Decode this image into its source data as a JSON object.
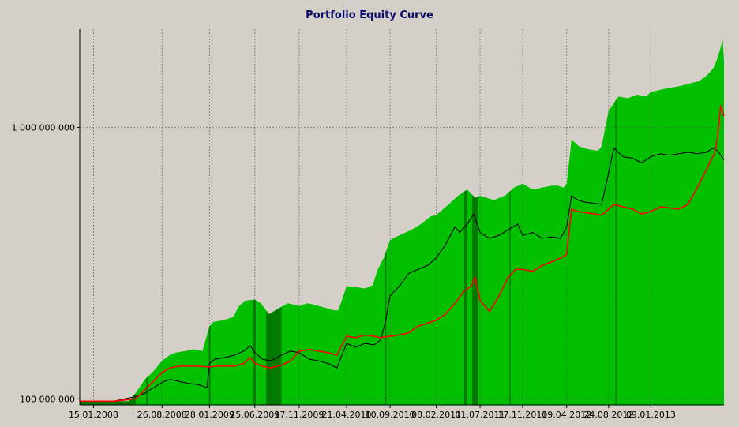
{
  "chart_data": {
    "type": "area",
    "title": "Portfolio Equity Curve",
    "xlabel": "",
    "ylabel": "",
    "y_scale": "log",
    "ylim": [
      95000000,
      2300000000
    ],
    "y_ticks": [
      100000000,
      1000000000
    ],
    "y_tick_labels": [
      "100 000 000",
      "1 000 000 000"
    ],
    "x_range": [
      "2007-12-01",
      "2013-09-05"
    ],
    "x_ticks": [
      "2008-01-15",
      "2008-08-26",
      "2009-01-28",
      "2009-06-25",
      "2009-11-17",
      "2010-04-21",
      "2010-09-10",
      "2011-02-08",
      "2011-07-01",
      "2011-11-17",
      "2012-04-09",
      "2012-08-24",
      "2013-01-09"
    ],
    "x_tick_labels": [
      "15.01.2008",
      "26.08.2008",
      "28.01.2009",
      "25.06.2009",
      "17.11.2009",
      "21.04.2010",
      "10.09.2010",
      "08.02.2011",
      "01.07.2011",
      "17.11.2011",
      "09.04.2012",
      "24.08.2012",
      "09.01.2013"
    ],
    "grid": true,
    "colors": {
      "area_light": "#00c000",
      "area_dark": "#007a00",
      "black_line": "#000000",
      "red_line": "#ff0000",
      "background": "#d4d0c8"
    },
    "series": [
      {
        "kind": "area",
        "x": [
          "2007-12-01",
          "2008-01-15",
          "2008-03-20",
          "2008-05-10",
          "2008-06-01",
          "2008-07-01",
          "2008-07-25",
          "2008-08-26",
          "2008-09-20",
          "2008-10-10",
          "2008-11-10",
          "2008-12-10",
          "2009-01-05",
          "2009-01-28",
          "2009-02-10",
          "2009-03-15",
          "2009-04-15",
          "2009-05-05",
          "2009-05-25",
          "2009-06-25",
          "2009-07-15",
          "2009-08-10",
          "2009-09-10",
          "2009-10-10",
          "2009-11-17",
          "2009-12-15",
          "2010-01-20",
          "2010-02-20",
          "2010-03-10",
          "2010-03-25",
          "2010-04-21",
          "2010-05-20",
          "2010-06-20",
          "2010-07-15",
          "2010-08-01",
          "2010-08-20",
          "2010-09-10",
          "2010-10-10",
          "2010-11-20",
          "2010-12-20",
          "2011-01-20",
          "2011-02-08",
          "2011-03-20",
          "2011-04-20",
          "2011-05-20",
          "2011-06-15",
          "2011-07-01",
          "2011-08-15",
          "2011-09-20",
          "2011-10-20",
          "2011-11-17",
          "2011-12-20",
          "2012-01-20",
          "2012-02-20",
          "2012-03-10",
          "2012-03-30",
          "2012-04-09",
          "2012-04-25",
          "2012-05-20",
          "2012-06-20",
          "2012-07-20",
          "2012-08-01",
          "2012-08-24",
          "2012-09-25",
          "2012-10-25",
          "2012-11-25",
          "2012-12-25",
          "2013-01-09",
          "2013-02-15",
          "2013-03-15",
          "2013-04-15",
          "2013-05-15",
          "2013-06-15",
          "2013-07-10",
          "2013-08-01",
          "2013-08-15",
          "2013-09-01",
          "2013-09-05"
        ],
        "values": [
          98000000,
          98000000,
          98000000,
          98000000,
          105000000,
          118000000,
          125000000,
          138000000,
          145000000,
          148000000,
          150000000,
          152000000,
          150000000,
          185000000,
          192000000,
          195000000,
          200000000,
          220000000,
          230000000,
          232000000,
          225000000,
          205000000,
          215000000,
          225000000,
          220000000,
          225000000,
          220000000,
          215000000,
          212000000,
          212000000,
          260000000,
          258000000,
          255000000,
          262000000,
          300000000,
          330000000,
          385000000,
          400000000,
          420000000,
          440000000,
          470000000,
          475000000,
          520000000,
          560000000,
          590000000,
          550000000,
          560000000,
          540000000,
          560000000,
          600000000,
          620000000,
          590000000,
          600000000,
          610000000,
          610000000,
          600000000,
          620000000,
          900000000,
          850000000,
          830000000,
          820000000,
          850000000,
          1150000000,
          1300000000,
          1280000000,
          1320000000,
          1300000000,
          1350000000,
          1380000000,
          1400000000,
          1420000000,
          1450000000,
          1480000000,
          1550000000,
          1650000000,
          1800000000,
          2100000000,
          1750000000
        ]
      },
      {
        "kind": "line",
        "color": "#000000",
        "x": [
          "2007-12-01",
          "2008-01-15",
          "2008-03-20",
          "2008-06-01",
          "2008-07-01",
          "2008-08-26",
          "2008-09-20",
          "2008-10-20",
          "2008-11-20",
          "2008-12-20",
          "2009-01-20",
          "2009-01-28",
          "2009-02-15",
          "2009-03-20",
          "2009-04-20",
          "2009-05-20",
          "2009-06-10",
          "2009-06-25",
          "2009-07-20",
          "2009-08-15",
          "2009-09-20",
          "2009-10-20",
          "2009-11-17",
          "2009-12-20",
          "2010-01-20",
          "2010-02-20",
          "2010-03-20",
          "2010-04-21",
          "2010-05-20",
          "2010-06-20",
          "2010-07-20",
          "2010-08-10",
          "2010-08-25",
          "2010-09-10",
          "2010-10-10",
          "2010-11-10",
          "2010-12-10",
          "2011-01-10",
          "2011-02-08",
          "2011-03-10",
          "2011-04-10",
          "2011-04-25",
          "2011-05-20",
          "2011-06-10",
          "2011-07-01",
          "2011-08-01",
          "2011-09-01",
          "2011-10-01",
          "2011-11-01",
          "2011-11-17",
          "2011-12-20",
          "2012-01-20",
          "2012-02-20",
          "2012-03-20",
          "2012-04-09",
          "2012-04-25",
          "2012-05-15",
          "2012-06-10",
          "2012-07-10",
          "2012-08-01",
          "2012-08-24",
          "2012-09-10",
          "2012-10-10",
          "2012-11-10",
          "2012-12-10",
          "2013-01-09",
          "2013-02-10",
          "2013-03-10",
          "2013-04-10",
          "2013-05-10",
          "2013-06-10",
          "2013-07-10",
          "2013-08-01",
          "2013-08-15",
          "2013-09-05"
        ],
        "values": [
          98000000,
          98000000,
          98000000,
          102000000,
          105000000,
          115000000,
          118000000,
          116000000,
          114000000,
          113000000,
          110000000,
          135000000,
          140000000,
          142000000,
          145000000,
          150000000,
          157000000,
          148000000,
          140000000,
          138000000,
          145000000,
          150000000,
          148000000,
          140000000,
          138000000,
          135000000,
          130000000,
          160000000,
          155000000,
          160000000,
          158000000,
          165000000,
          190000000,
          240000000,
          260000000,
          290000000,
          300000000,
          310000000,
          330000000,
          370000000,
          430000000,
          410000000,
          440000000,
          480000000,
          410000000,
          390000000,
          400000000,
          420000000,
          440000000,
          400000000,
          410000000,
          390000000,
          395000000,
          390000000,
          430000000,
          560000000,
          540000000,
          530000000,
          525000000,
          520000000,
          680000000,
          840000000,
          780000000,
          770000000,
          740000000,
          780000000,
          800000000,
          790000000,
          800000000,
          810000000,
          800000000,
          810000000,
          840000000,
          820000000,
          760000000
        ]
      },
      {
        "kind": "line",
        "color": "#ff0000",
        "x": [
          "2007-12-01",
          "2008-01-15",
          "2008-03-20",
          "2008-06-01",
          "2008-07-01",
          "2008-08-26",
          "2008-09-20",
          "2008-10-20",
          "2008-11-20",
          "2008-12-20",
          "2009-01-28",
          "2009-02-20",
          "2009-03-20",
          "2009-04-20",
          "2009-05-20",
          "2009-06-10",
          "2009-06-25",
          "2009-07-20",
          "2009-08-15",
          "2009-09-20",
          "2009-10-20",
          "2009-11-17",
          "2009-12-20",
          "2010-01-20",
          "2010-02-20",
          "2010-03-20",
          "2010-04-21",
          "2010-05-20",
          "2010-06-20",
          "2010-07-20",
          "2010-08-10",
          "2010-09-10",
          "2010-10-10",
          "2010-11-10",
          "2010-12-10",
          "2011-01-10",
          "2011-02-08",
          "2011-03-10",
          "2011-04-10",
          "2011-05-10",
          "2011-06-01",
          "2011-06-15",
          "2011-07-01",
          "2011-08-01",
          "2011-09-01",
          "2011-10-01",
          "2011-10-25",
          "2011-11-17",
          "2011-12-20",
          "2012-01-20",
          "2012-02-20",
          "2012-03-20",
          "2012-04-09",
          "2012-04-25",
          "2012-05-15",
          "2012-06-10",
          "2012-07-10",
          "2012-08-01",
          "2012-08-24",
          "2012-09-10",
          "2012-10-10",
          "2012-11-10",
          "2012-12-10",
          "2013-01-09",
          "2013-02-10",
          "2013-03-10",
          "2013-04-10",
          "2013-05-10",
          "2013-06-10",
          "2013-07-10",
          "2013-07-25",
          "2013-08-05",
          "2013-08-15",
          "2013-08-25",
          "2013-09-05"
        ],
        "values": [
          98000000,
          98000000,
          98000000,
          100000000,
          108000000,
          125000000,
          130000000,
          132000000,
          132000000,
          132000000,
          131000000,
          132000000,
          132000000,
          132000000,
          135000000,
          142000000,
          135000000,
          132000000,
          130000000,
          133000000,
          138000000,
          150000000,
          152000000,
          150000000,
          148000000,
          145000000,
          170000000,
          168000000,
          172000000,
          170000000,
          168000000,
          170000000,
          172000000,
          175000000,
          185000000,
          190000000,
          195000000,
          205000000,
          225000000,
          250000000,
          260000000,
          280000000,
          230000000,
          210000000,
          240000000,
          280000000,
          300000000,
          300000000,
          295000000,
          310000000,
          320000000,
          330000000,
          340000000,
          500000000,
          490000000,
          485000000,
          480000000,
          475000000,
          500000000,
          520000000,
          510000000,
          500000000,
          480000000,
          490000000,
          510000000,
          505000000,
          500000000,
          520000000,
          600000000,
          700000000,
          760000000,
          800000000,
          920000000,
          1200000000,
          1100000000
        ]
      }
    ],
    "dark_bands": [
      [
        "2007-12-01",
        "2008-06-01"
      ],
      [
        "2008-07-05",
        "2008-07-10"
      ],
      [
        "2009-01-26",
        "2009-01-31"
      ],
      [
        "2009-06-20",
        "2009-06-28"
      ],
      [
        "2009-08-01",
        "2009-09-20"
      ],
      [
        "2010-08-25",
        "2010-08-28"
      ],
      [
        "2011-05-10",
        "2011-05-20"
      ],
      [
        "2011-06-05",
        "2011-06-25"
      ],
      [
        "2011-10-05",
        "2011-10-08"
      ],
      [
        "2012-09-15",
        "2012-09-18"
      ]
    ]
  }
}
